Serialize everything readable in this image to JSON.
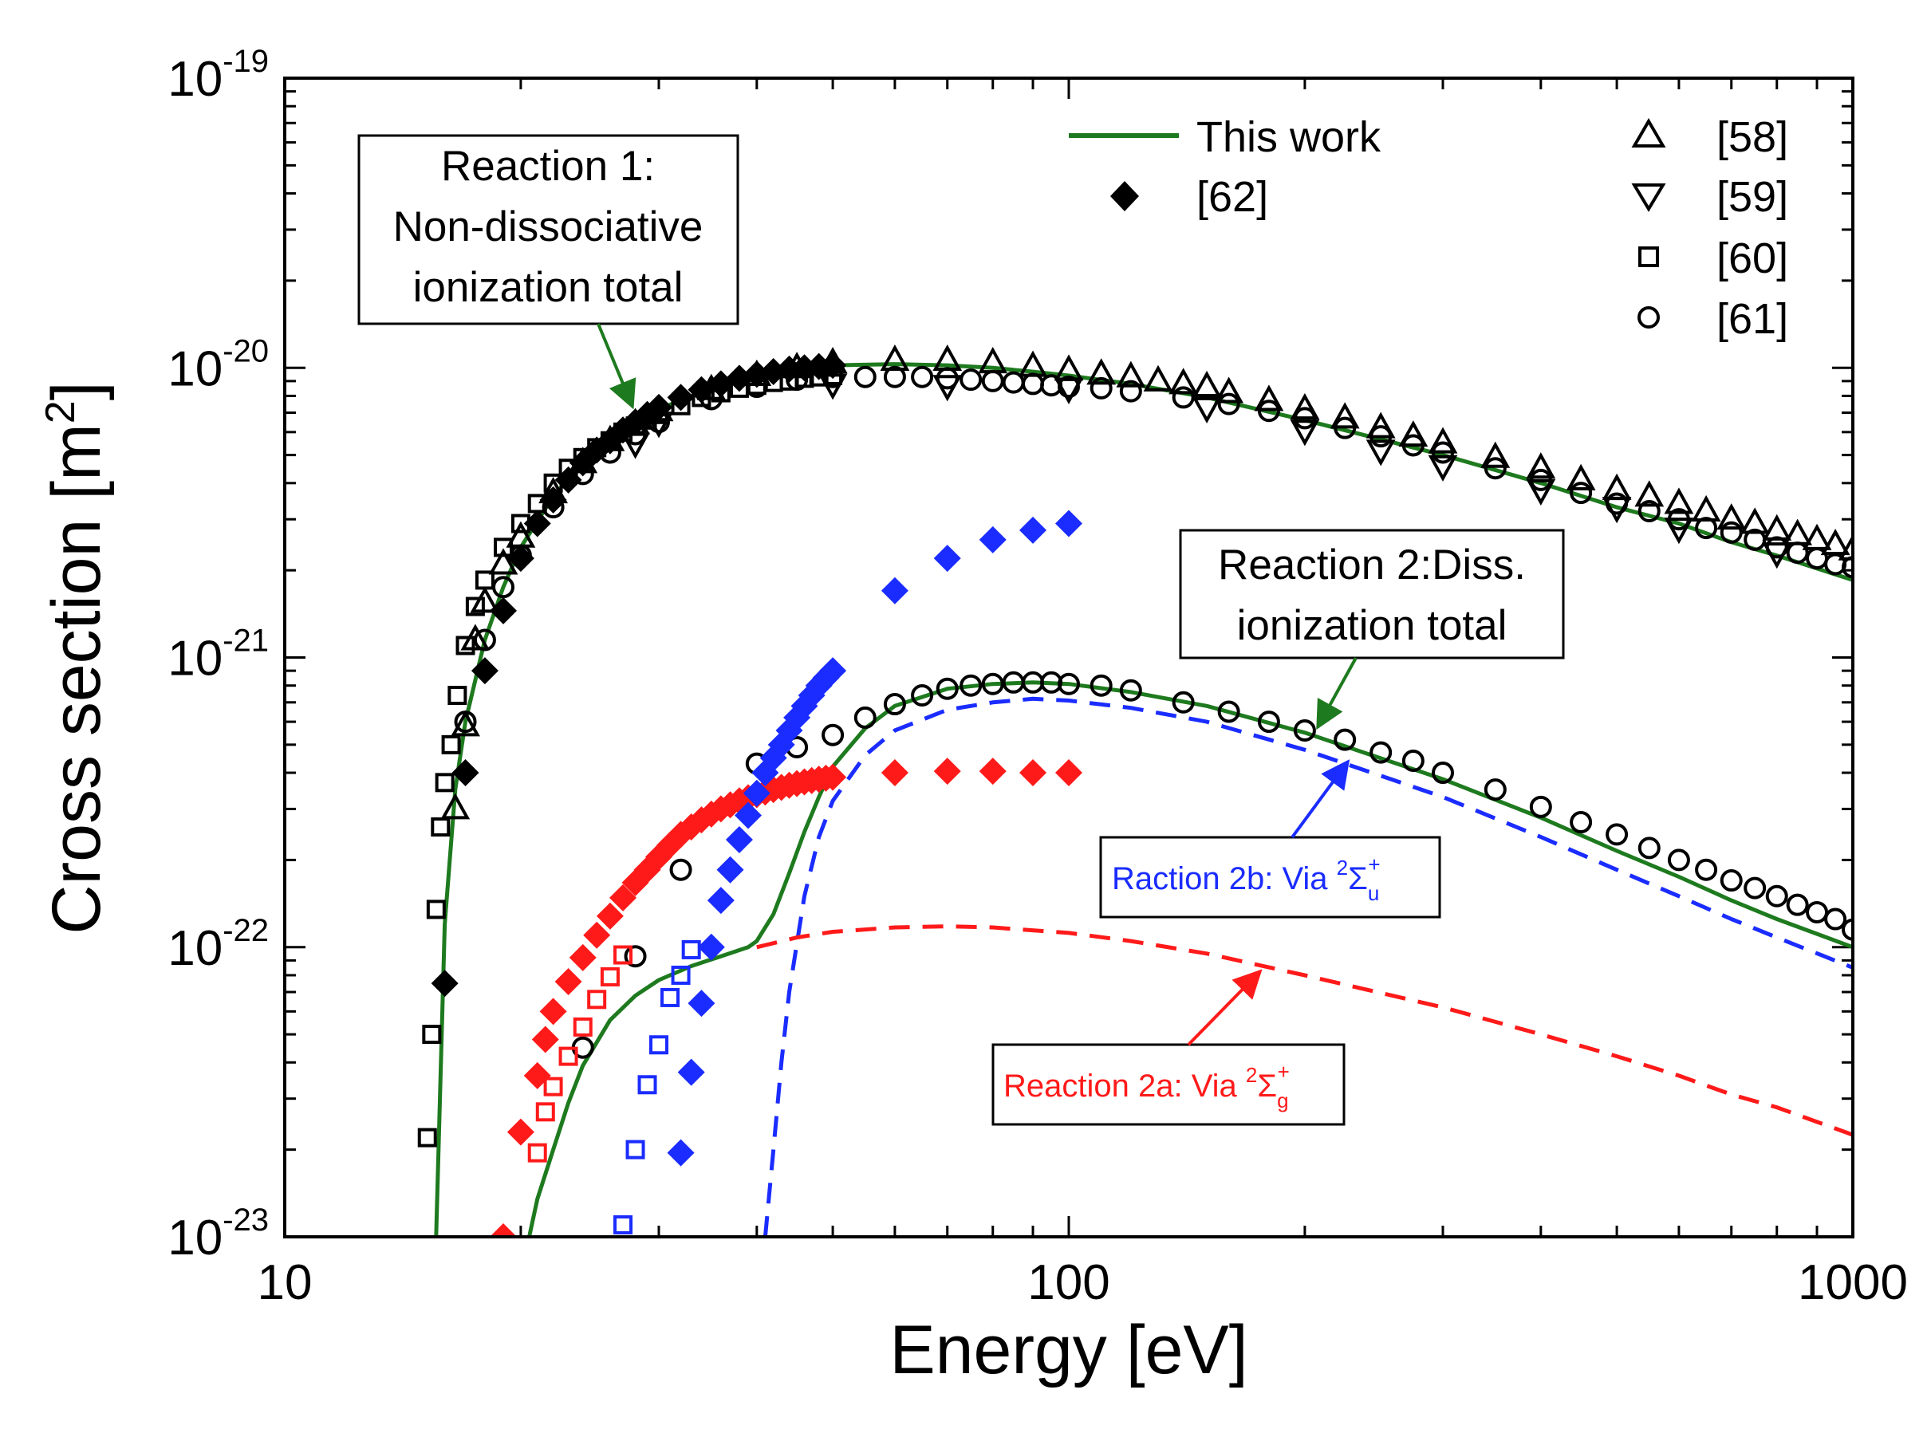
{
  "colors": {
    "this_work": "#1e7a1e",
    "ref_black": "#000000",
    "reaction_2a": "#ff1a1a",
    "reaction_2b": "#1a2cff"
  },
  "chart_data": {
    "type": "scatter",
    "title": "",
    "xlabel": "Energy [eV]",
    "ylabel_main": "Cross section [m",
    "ylabel_sup": "2",
    "ylabel_end": "]",
    "xscale": "log",
    "yscale": "log",
    "xlim": [
      10,
      1000
    ],
    "ylim": [
      1e-23,
      1e-19
    ],
    "x_ticks": [
      {
        "value": 10,
        "label": "10"
      },
      {
        "value": 100,
        "label": "100"
      },
      {
        "value": 1000,
        "label": "1000"
      }
    ],
    "y_ticks": [
      {
        "value": 1e-19,
        "base": "10",
        "exp": "-19"
      },
      {
        "value": 1e-20,
        "base": "10",
        "exp": "-20"
      },
      {
        "value": 1e-21,
        "base": "10",
        "exp": "-21"
      },
      {
        "value": 1e-22,
        "base": "10",
        "exp": "-22"
      },
      {
        "value": 1e-23,
        "base": "10",
        "exp": "-23"
      }
    ],
    "legend": [
      {
        "label": "This work",
        "marker": "line",
        "color": "#1e7a1e"
      },
      {
        "label": "[62]",
        "marker": "diamond-filled",
        "color": "#000000"
      },
      {
        "label": "[58]",
        "marker": "triangle-up",
        "color": "#000000"
      },
      {
        "label": "[59]",
        "marker": "triangle-down",
        "color": "#000000"
      },
      {
        "label": "[60]",
        "marker": "square",
        "color": "#000000"
      },
      {
        "label": "[61]",
        "marker": "circle",
        "color": "#000000"
      }
    ],
    "annotations": {
      "r1": [
        "Reaction 1:",
        "Non-dissociative",
        "ionization total"
      ],
      "r2": [
        "Reaction 2:Diss.",
        "ionization total"
      ],
      "r2b": {
        "text": "Raction 2b: Via ",
        "sup": "2",
        "sym": "Σ",
        "sub": "u",
        "sup2": "+"
      },
      "r2a": {
        "text": "Reaction 2a: Via ",
        "sup": "2",
        "sym": "Σ",
        "sub": "g",
        "sup2": "+"
      }
    },
    "series": [
      {
        "name": "This work — Reaction 1 (non-dissociative total)",
        "style": "solid",
        "color": "#1e7a1e",
        "x": [
          15.6,
          16,
          16.5,
          17,
          18,
          19,
          20,
          22,
          24,
          26,
          28,
          30,
          35,
          40,
          45,
          50,
          60,
          70,
          80,
          90,
          100,
          120,
          150,
          200,
          300,
          400,
          500,
          600,
          700,
          800,
          1000
        ],
        "y": [
          1e-23,
          1.2e-22,
          3.5e-22,
          6e-22,
          1.15e-21,
          1.75e-21,
          2.4e-21,
          3.6e-21,
          4.7e-21,
          5.6e-21,
          6.5e-21,
          7.2e-21,
          8.5e-21,
          9.4e-21,
          9.9e-21,
          1.02e-20,
          1.03e-20,
          1.02e-20,
          1e-20,
          9.7e-21,
          9.4e-21,
          8.8e-21,
          7.9e-21,
          6.6e-21,
          5e-21,
          4e-21,
          3.3e-21,
          2.9e-21,
          2.5e-21,
          2.25e-21,
          1.85e-21
        ]
      },
      {
        "name": "This work — Reaction 2 (dissociative total)",
        "style": "solid",
        "color": "#1e7a1e",
        "x": [
          20.5,
          21,
          22,
          23,
          24,
          26,
          28,
          30,
          33,
          36,
          39,
          40,
          42,
          44,
          46,
          48,
          50,
          55,
          60,
          70,
          80,
          90,
          100,
          120,
          150,
          200,
          300,
          400,
          500,
          600,
          700,
          800,
          1000
        ],
        "y": [
          1e-23,
          1.35e-23,
          2e-23,
          2.9e-23,
          3.9e-23,
          5.6e-23,
          6.8e-23,
          7.7e-23,
          8.6e-23,
          9.3e-23,
          1e-22,
          1.05e-22,
          1.3e-22,
          1.8e-22,
          2.5e-22,
          3.3e-22,
          4.2e-22,
          5.7e-22,
          6.8e-22,
          7.8e-22,
          8.1e-22,
          8.2e-22,
          8.1e-22,
          7.6e-22,
          6.8e-22,
          5.5e-22,
          3.8e-22,
          2.8e-22,
          2.15e-22,
          1.75e-22,
          1.45e-22,
          1.25e-22,
          1e-22
        ]
      },
      {
        "name": "Reaction 2b: Via 2Σu+",
        "style": "dashed",
        "color": "#1a2cff",
        "x": [
          41,
          42,
          43,
          44,
          46,
          48,
          50,
          55,
          60,
          70,
          80,
          90,
          100,
          120,
          150,
          200,
          300,
          400,
          500,
          600,
          700,
          800,
          1000
        ],
        "y": [
          1e-23,
          2e-23,
          4e-23,
          7e-23,
          1.5e-22,
          2.4e-22,
          3.2e-22,
          4.6e-22,
          5.6e-22,
          6.6e-22,
          7e-22,
          7.2e-22,
          7.1e-22,
          6.7e-22,
          6e-22,
          4.8e-22,
          3.3e-22,
          2.4e-22,
          1.85e-22,
          1.5e-22,
          1.25e-22,
          1.08e-22,
          8.5e-23
        ]
      },
      {
        "name": "Reaction 2a: Via 2Σg+",
        "style": "dashed",
        "color": "#ff1a1a",
        "x": [
          40,
          45,
          50,
          60,
          70,
          80,
          100,
          120,
          150,
          200,
          300,
          400,
          500,
          600,
          700,
          800,
          1000
        ],
        "y": [
          1e-22,
          1.08e-22,
          1.13e-22,
          1.17e-22,
          1.18e-22,
          1.17e-22,
          1.12e-22,
          1.05e-22,
          9.5e-23,
          8e-23,
          6.2e-23,
          5e-23,
          4.2e-23,
          3.6e-23,
          3.1e-23,
          2.8e-23,
          2.25e-23
        ]
      },
      {
        "name": "[62] non-dissociative",
        "marker": "diamond-filled",
        "color": "#000000",
        "x": [
          16,
          17,
          18,
          19,
          20,
          21,
          22,
          23,
          24,
          25,
          26,
          27,
          28,
          29,
          30,
          32,
          34,
          36,
          38,
          40,
          42,
          44,
          46,
          48,
          50
        ],
        "y": [
          7.5e-23,
          4e-22,
          9e-22,
          1.45e-21,
          2.2e-21,
          2.9e-21,
          3.5e-21,
          4.1e-21,
          4.7e-21,
          5.2e-21,
          5.6e-21,
          6.1e-21,
          6.5e-21,
          6.9e-21,
          7.3e-21,
          7.9e-21,
          8.4e-21,
          8.8e-21,
          9.2e-21,
          9.5e-21,
          9.7e-21,
          9.9e-21,
          1e-20,
          1.01e-20,
          1.02e-20
        ]
      },
      {
        "name": "[58]",
        "marker": "triangle-up",
        "color": "#000000",
        "x": [
          16.5,
          17,
          17.5,
          18,
          19,
          20,
          22,
          24,
          26,
          28,
          30,
          35,
          40,
          45,
          50,
          60,
          70,
          80,
          90,
          100,
          110,
          120,
          130,
          140,
          150,
          160,
          180,
          200,
          225,
          250,
          275,
          300,
          350,
          400,
          450,
          500,
          550,
          600,
          650,
          700,
          750,
          800,
          850,
          900,
          950,
          1000
        ],
        "y": [
          3e-22,
          5.8e-22,
          1.15e-21,
          1.55e-21,
          2.1e-21,
          2.6e-21,
          3.7e-21,
          4.7e-21,
          5.6e-21,
          6.4e-21,
          7.1e-21,
          8.4e-21,
          9.4e-21,
          1e-20,
          1.04e-20,
          1.06e-20,
          1.06e-20,
          1.04e-20,
          1.01e-20,
          9.8e-21,
          9.5e-21,
          9.3e-21,
          9e-21,
          8.8e-21,
          8.6e-21,
          8.2e-21,
          7.7e-21,
          7.2e-21,
          6.7e-21,
          6.2e-21,
          5.8e-21,
          5.5e-21,
          4.9e-21,
          4.5e-21,
          4.1e-21,
          3.8e-21,
          3.6e-21,
          3.4e-21,
          3.2e-21,
          3e-21,
          2.9e-21,
          2.75e-21,
          2.65e-21,
          2.55e-21,
          2.45e-21,
          2.35e-21
        ]
      },
      {
        "name": "[59]",
        "marker": "triangle-down",
        "color": "#000000",
        "x": [
          28,
          30,
          50,
          70,
          100,
          150,
          200,
          250,
          300,
          400,
          500,
          600,
          800
        ],
        "y": [
          5.5e-21,
          6.5e-21,
          8.8e-21,
          8.7e-21,
          8.5e-21,
          7.3e-21,
          6.1e-21,
          5.2e-21,
          4.6e-21,
          3.8e-21,
          3.3e-21,
          2.8e-21,
          2.3e-21
        ]
      },
      {
        "name": "[60]",
        "marker": "square",
        "color": "#000000",
        "x": [
          15.2,
          15.4,
          15.6,
          15.8,
          16,
          16.3,
          16.6,
          17,
          17.5,
          18,
          19,
          20,
          21,
          22,
          23,
          24,
          25,
          26,
          27,
          28,
          29,
          30,
          32,
          34,
          36,
          38,
          40,
          42,
          44,
          46,
          48,
          50
        ],
        "y": [
          2.2e-23,
          5e-23,
          1.35e-22,
          2.6e-22,
          3.7e-22,
          5e-22,
          7.4e-22,
          1.1e-21,
          1.5e-21,
          1.85e-21,
          2.4e-21,
          2.9e-21,
          3.4e-21,
          4e-21,
          4.5e-21,
          4.9e-21,
          5.3e-21,
          5.6e-21,
          6e-21,
          6.3e-21,
          6.6e-21,
          6.9e-21,
          7.4e-21,
          7.9e-21,
          8.2e-21,
          8.5e-21,
          8.7e-21,
          8.9e-21,
          9e-21,
          9.2e-21,
          9.3e-21,
          9.4e-21
        ]
      },
      {
        "name": "[61] non-dissociative",
        "marker": "circle",
        "color": "#000000",
        "x": [
          17,
          18,
          19,
          20,
          22,
          24,
          26,
          28,
          30,
          35,
          40,
          45,
          50,
          55,
          60,
          65,
          70,
          75,
          80,
          85,
          90,
          95,
          100,
          110,
          120,
          140,
          160,
          180,
          200,
          225,
          250,
          275,
          300,
          350,
          400,
          450,
          500,
          550,
          600,
          650,
          700,
          750,
          800,
          850,
          900,
          950,
          1000
        ],
        "y": [
          6e-22,
          1.15e-21,
          1.75e-21,
          2.25e-21,
          3.3e-21,
          4.3e-21,
          5.1e-21,
          5.9e-21,
          6.5e-21,
          7.8e-21,
          8.6e-21,
          9.1e-21,
          9.3e-21,
          9.3e-21,
          9.3e-21,
          9.3e-21,
          9.2e-21,
          9.1e-21,
          9e-21,
          8.9e-21,
          8.8e-21,
          8.7e-21,
          8.6e-21,
          8.5e-21,
          8.3e-21,
          7.9e-21,
          7.5e-21,
          7.1e-21,
          6.7e-21,
          6.2e-21,
          5.8e-21,
          5.4e-21,
          5.1e-21,
          4.5e-21,
          4.1e-21,
          3.7e-21,
          3.4e-21,
          3.2e-21,
          3e-21,
          2.8e-21,
          2.7e-21,
          2.55e-21,
          2.4e-21,
          2.3e-21,
          2.2e-21,
          2.1e-21,
          2.05e-21
        ]
      },
      {
        "name": "[61] dissociative",
        "marker": "circle",
        "color": "#000000",
        "x": [
          24,
          28,
          32,
          40,
          45,
          50,
          55,
          60,
          65,
          70,
          75,
          80,
          85,
          90,
          95,
          100,
          110,
          120,
          140,
          160,
          180,
          200,
          225,
          250,
          275,
          300,
          350,
          400,
          450,
          500,
          550,
          600,
          650,
          700,
          750,
          800,
          850,
          900,
          950,
          1000
        ],
        "y": [
          4.5e-23,
          9.3e-23,
          1.85e-22,
          4.3e-22,
          4.9e-22,
          5.4e-22,
          6.2e-22,
          6.9e-22,
          7.4e-22,
          7.8e-22,
          8e-22,
          8.1e-22,
          8.2e-22,
          8.2e-22,
          8.2e-22,
          8.1e-22,
          8e-22,
          7.7e-22,
          7e-22,
          6.5e-22,
          6e-22,
          5.6e-22,
          5.2e-22,
          4.7e-22,
          4.4e-22,
          4e-22,
          3.5e-22,
          3.05e-22,
          2.7e-22,
          2.45e-22,
          2.2e-22,
          2e-22,
          1.85e-22,
          1.7e-22,
          1.6e-22,
          1.5e-22,
          1.4e-22,
          1.32e-22,
          1.25e-22,
          1.15e-22
        ]
      },
      {
        "name": "[62] Reaction 2a",
        "marker": "diamond-filled",
        "color": "#ff1a1a",
        "x": [
          19,
          20,
          21,
          21.5,
          22,
          23,
          24,
          25,
          26,
          27,
          28,
          29,
          30,
          31,
          32,
          33,
          34,
          35,
          36,
          37,
          38,
          39,
          40,
          41,
          42,
          43,
          44,
          45,
          46,
          47,
          48,
          49,
          50,
          60,
          70,
          80,
          90,
          100
        ],
        "y": [
          1e-23,
          2.3e-23,
          3.6e-23,
          4.8e-23,
          6e-23,
          7.6e-23,
          9.2e-23,
          1.1e-22,
          1.28e-22,
          1.48e-22,
          1.67e-22,
          1.85e-22,
          2.05e-22,
          2.25e-22,
          2.45e-22,
          2.6e-22,
          2.75e-22,
          2.88e-22,
          3e-22,
          3.1e-22,
          3.2e-22,
          3.28e-22,
          3.36e-22,
          3.43e-22,
          3.5e-22,
          3.56e-22,
          3.62e-22,
          3.67e-22,
          3.72e-22,
          3.76e-22,
          3.8e-22,
          3.83e-22,
          3.86e-22,
          4e-22,
          4.05e-22,
          4.05e-22,
          4e-22,
          4e-22
        ]
      },
      {
        "name": "[60] Reaction 2a",
        "marker": "square",
        "color": "#ff1a1a",
        "x": [
          21,
          21.5,
          22,
          23,
          24,
          25,
          26,
          27
        ],
        "y": [
          1.95e-23,
          2.7e-23,
          3.3e-23,
          4.2e-23,
          5.3e-23,
          6.6e-23,
          7.9e-23,
          9.4e-23
        ]
      },
      {
        "name": "[62] Reaction 2b",
        "marker": "diamond-filled",
        "color": "#1a2cff",
        "x": [
          32,
          33,
          34,
          35,
          36,
          37,
          38,
          39,
          40,
          41,
          42,
          43,
          44,
          45,
          46,
          47,
          48,
          49,
          50,
          60,
          70,
          80,
          90,
          100
        ],
        "y": [
          1.95e-23,
          3.7e-23,
          6.4e-23,
          1e-22,
          1.45e-22,
          1.85e-22,
          2.35e-22,
          2.85e-22,
          3.4e-22,
          4e-22,
          4.5e-22,
          5e-22,
          5.6e-22,
          6.2e-22,
          6.8e-22,
          7.4e-22,
          8e-22,
          8.5e-22,
          9e-22,
          1.7e-21,
          2.2e-21,
          2.55e-21,
          2.75e-21,
          2.9e-21
        ]
      },
      {
        "name": "[60] Reaction 2b",
        "marker": "square",
        "color": "#1a2cff",
        "x": [
          27,
          28,
          29,
          30,
          31,
          32,
          33
        ],
        "y": [
          1.1e-23,
          2e-23,
          3.35e-23,
          4.6e-23,
          6.7e-23,
          8e-23,
          9.8e-23
        ]
      }
    ]
  }
}
